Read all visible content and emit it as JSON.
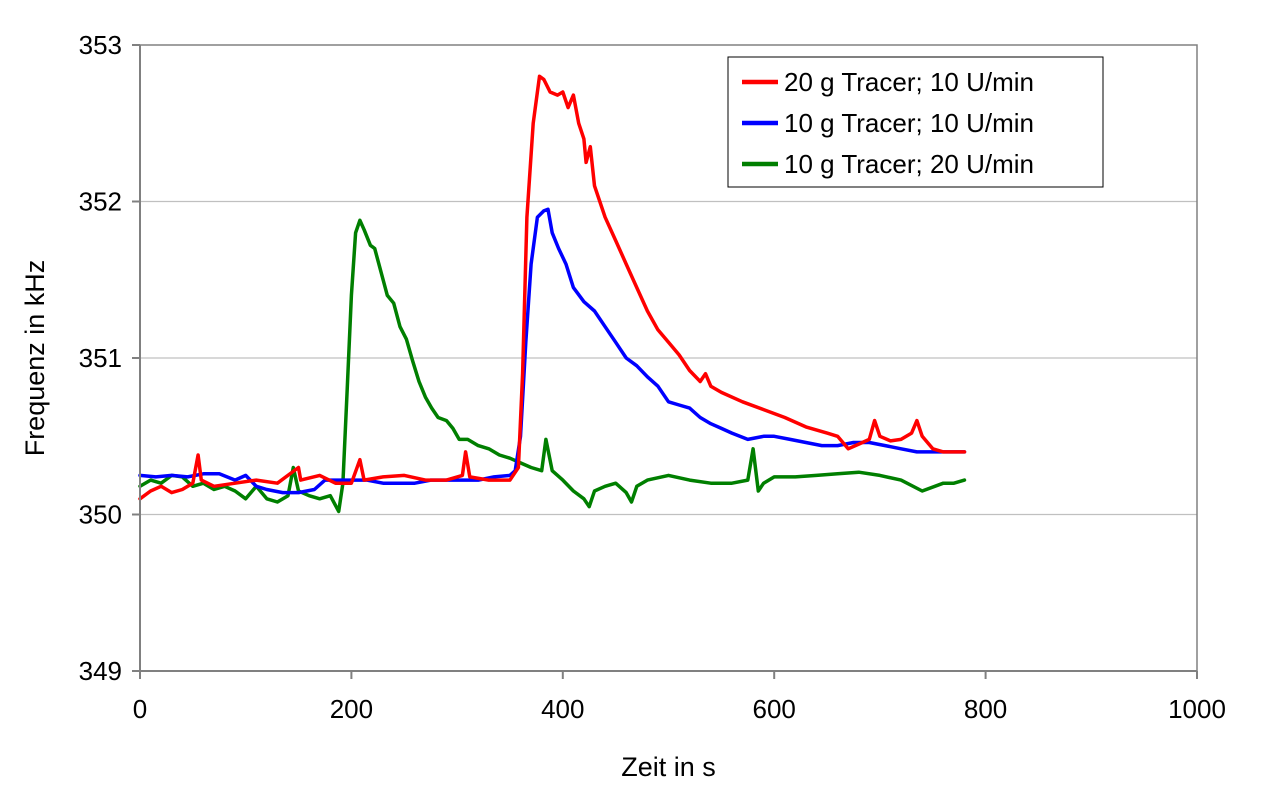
{
  "chart_data": {
    "type": "line",
    "title": "",
    "xlabel": "Zeit in s",
    "ylabel": "Frequenz in kHz",
    "xlim": [
      0,
      1000
    ],
    "ylim": [
      349,
      353
    ],
    "xticks": [
      0,
      200,
      400,
      600,
      800,
      1000
    ],
    "yticks": [
      349,
      350,
      351,
      352,
      353
    ],
    "grid": "horizontal",
    "legend_position": "top-right",
    "series": [
      {
        "name": "20 g Tracer; 10 U/min",
        "color": "#ff0000",
        "points": [
          [
            0,
            350.1
          ],
          [
            10,
            350.15
          ],
          [
            20,
            350.18
          ],
          [
            30,
            350.14
          ],
          [
            40,
            350.16
          ],
          [
            50,
            350.2
          ],
          [
            55,
            350.38
          ],
          [
            58,
            350.22
          ],
          [
            70,
            350.18
          ],
          [
            90,
            350.2
          ],
          [
            110,
            350.22
          ],
          [
            130,
            350.2
          ],
          [
            150,
            350.3
          ],
          [
            152,
            350.22
          ],
          [
            170,
            350.25
          ],
          [
            185,
            350.2
          ],
          [
            200,
            350.2
          ],
          [
            208,
            350.35
          ],
          [
            212,
            350.22
          ],
          [
            230,
            350.24
          ],
          [
            250,
            350.25
          ],
          [
            270,
            350.22
          ],
          [
            290,
            350.22
          ],
          [
            305,
            350.25
          ],
          [
            308,
            350.4
          ],
          [
            312,
            350.24
          ],
          [
            330,
            350.22
          ],
          [
            350,
            350.22
          ],
          [
            358,
            350.3
          ],
          [
            362,
            350.9
          ],
          [
            366,
            351.9
          ],
          [
            372,
            352.5
          ],
          [
            378,
            352.8
          ],
          [
            382,
            352.78
          ],
          [
            388,
            352.7
          ],
          [
            395,
            352.68
          ],
          [
            400,
            352.7
          ],
          [
            405,
            352.6
          ],
          [
            410,
            352.68
          ],
          [
            415,
            352.5
          ],
          [
            420,
            352.4
          ],
          [
            422,
            352.25
          ],
          [
            426,
            352.35
          ],
          [
            430,
            352.1
          ],
          [
            440,
            351.9
          ],
          [
            450,
            351.75
          ],
          [
            460,
            351.6
          ],
          [
            470,
            351.45
          ],
          [
            480,
            351.3
          ],
          [
            490,
            351.18
          ],
          [
            500,
            351.1
          ],
          [
            510,
            351.02
          ],
          [
            520,
            350.92
          ],
          [
            530,
            350.85
          ],
          [
            535,
            350.9
          ],
          [
            540,
            350.82
          ],
          [
            550,
            350.78
          ],
          [
            570,
            350.72
          ],
          [
            590,
            350.67
          ],
          [
            610,
            350.62
          ],
          [
            630,
            350.56
          ],
          [
            650,
            350.52
          ],
          [
            660,
            350.5
          ],
          [
            670,
            350.42
          ],
          [
            680,
            350.45
          ],
          [
            690,
            350.48
          ],
          [
            695,
            350.6
          ],
          [
            700,
            350.5
          ],
          [
            710,
            350.47
          ],
          [
            720,
            350.48
          ],
          [
            730,
            350.52
          ],
          [
            735,
            350.6
          ],
          [
            740,
            350.5
          ],
          [
            750,
            350.42
          ],
          [
            760,
            350.4
          ],
          [
            770,
            350.4
          ],
          [
            780,
            350.4
          ]
        ]
      },
      {
        "name": "10 g Tracer; 10 U/min",
        "color": "#0000ff",
        "points": [
          [
            0,
            350.25
          ],
          [
            15,
            350.24
          ],
          [
            30,
            350.25
          ],
          [
            45,
            350.24
          ],
          [
            60,
            350.26
          ],
          [
            75,
            350.26
          ],
          [
            90,
            350.22
          ],
          [
            100,
            350.25
          ],
          [
            110,
            350.18
          ],
          [
            120,
            350.16
          ],
          [
            135,
            350.14
          ],
          [
            150,
            350.14
          ],
          [
            165,
            350.16
          ],
          [
            175,
            350.22
          ],
          [
            185,
            350.22
          ],
          [
            200,
            350.22
          ],
          [
            215,
            350.22
          ],
          [
            230,
            350.2
          ],
          [
            245,
            350.2
          ],
          [
            260,
            350.2
          ],
          [
            275,
            350.22
          ],
          [
            290,
            350.22
          ],
          [
            305,
            350.22
          ],
          [
            320,
            350.22
          ],
          [
            335,
            350.24
          ],
          [
            350,
            350.25
          ],
          [
            355,
            350.28
          ],
          [
            360,
            350.5
          ],
          [
            365,
            351.1
          ],
          [
            370,
            351.6
          ],
          [
            376,
            351.9
          ],
          [
            382,
            351.94
          ],
          [
            386,
            351.95
          ],
          [
            390,
            351.8
          ],
          [
            396,
            351.7
          ],
          [
            403,
            351.6
          ],
          [
            410,
            351.45
          ],
          [
            420,
            351.36
          ],
          [
            430,
            351.3
          ],
          [
            440,
            351.2
          ],
          [
            450,
            351.1
          ],
          [
            460,
            351.0
          ],
          [
            470,
            350.95
          ],
          [
            480,
            350.88
          ],
          [
            490,
            350.82
          ],
          [
            500,
            350.72
          ],
          [
            510,
            350.7
          ],
          [
            520,
            350.68
          ],
          [
            530,
            350.62
          ],
          [
            540,
            350.58
          ],
          [
            550,
            350.55
          ],
          [
            560,
            350.52
          ],
          [
            575,
            350.48
          ],
          [
            590,
            350.5
          ],
          [
            600,
            350.5
          ],
          [
            615,
            350.48
          ],
          [
            630,
            350.46
          ],
          [
            645,
            350.44
          ],
          [
            660,
            350.44
          ],
          [
            675,
            350.46
          ],
          [
            690,
            350.46
          ],
          [
            705,
            350.44
          ],
          [
            720,
            350.42
          ],
          [
            735,
            350.4
          ],
          [
            750,
            350.4
          ],
          [
            765,
            350.4
          ],
          [
            780,
            350.4
          ]
        ]
      },
      {
        "name": "10 g Tracer; 20 U/min",
        "color": "#007f00",
        "points": [
          [
            0,
            350.18
          ],
          [
            10,
            350.22
          ],
          [
            20,
            350.2
          ],
          [
            30,
            350.25
          ],
          [
            40,
            350.24
          ],
          [
            50,
            350.18
          ],
          [
            60,
            350.2
          ],
          [
            70,
            350.16
          ],
          [
            80,
            350.18
          ],
          [
            90,
            350.15
          ],
          [
            100,
            350.1
          ],
          [
            110,
            350.18
          ],
          [
            120,
            350.1
          ],
          [
            130,
            350.08
          ],
          [
            140,
            350.12
          ],
          [
            145,
            350.3
          ],
          [
            150,
            350.15
          ],
          [
            160,
            350.12
          ],
          [
            170,
            350.1
          ],
          [
            180,
            350.12
          ],
          [
            188,
            350.02
          ],
          [
            192,
            350.2
          ],
          [
            196,
            350.8
          ],
          [
            200,
            351.4
          ],
          [
            204,
            351.8
          ],
          [
            208,
            351.88
          ],
          [
            212,
            351.82
          ],
          [
            218,
            351.72
          ],
          [
            222,
            351.7
          ],
          [
            228,
            351.55
          ],
          [
            234,
            351.4
          ],
          [
            240,
            351.35
          ],
          [
            246,
            351.2
          ],
          [
            252,
            351.12
          ],
          [
            258,
            350.98
          ],
          [
            264,
            350.85
          ],
          [
            270,
            350.75
          ],
          [
            276,
            350.68
          ],
          [
            282,
            350.62
          ],
          [
            290,
            350.6
          ],
          [
            296,
            350.55
          ],
          [
            302,
            350.48
          ],
          [
            310,
            350.48
          ],
          [
            320,
            350.44
          ],
          [
            330,
            350.42
          ],
          [
            340,
            350.38
          ],
          [
            350,
            350.36
          ],
          [
            360,
            350.33
          ],
          [
            370,
            350.3
          ],
          [
            380,
            350.28
          ],
          [
            384,
            350.48
          ],
          [
            390,
            350.28
          ],
          [
            400,
            350.22
          ],
          [
            410,
            350.15
          ],
          [
            420,
            350.1
          ],
          [
            425,
            350.05
          ],
          [
            430,
            350.15
          ],
          [
            440,
            350.18
          ],
          [
            450,
            350.2
          ],
          [
            460,
            350.14
          ],
          [
            465,
            350.08
          ],
          [
            470,
            350.18
          ],
          [
            480,
            350.22
          ],
          [
            500,
            350.25
          ],
          [
            520,
            350.22
          ],
          [
            540,
            350.2
          ],
          [
            560,
            350.2
          ],
          [
            575,
            350.22
          ],
          [
            580,
            350.42
          ],
          [
            585,
            350.15
          ],
          [
            590,
            350.2
          ],
          [
            600,
            350.24
          ],
          [
            620,
            350.24
          ],
          [
            640,
            350.25
          ],
          [
            660,
            350.26
          ],
          [
            680,
            350.27
          ],
          [
            700,
            350.25
          ],
          [
            720,
            350.22
          ],
          [
            740,
            350.15
          ],
          [
            760,
            350.2
          ],
          [
            770,
            350.2
          ],
          [
            780,
            350.22
          ]
        ]
      }
    ]
  }
}
